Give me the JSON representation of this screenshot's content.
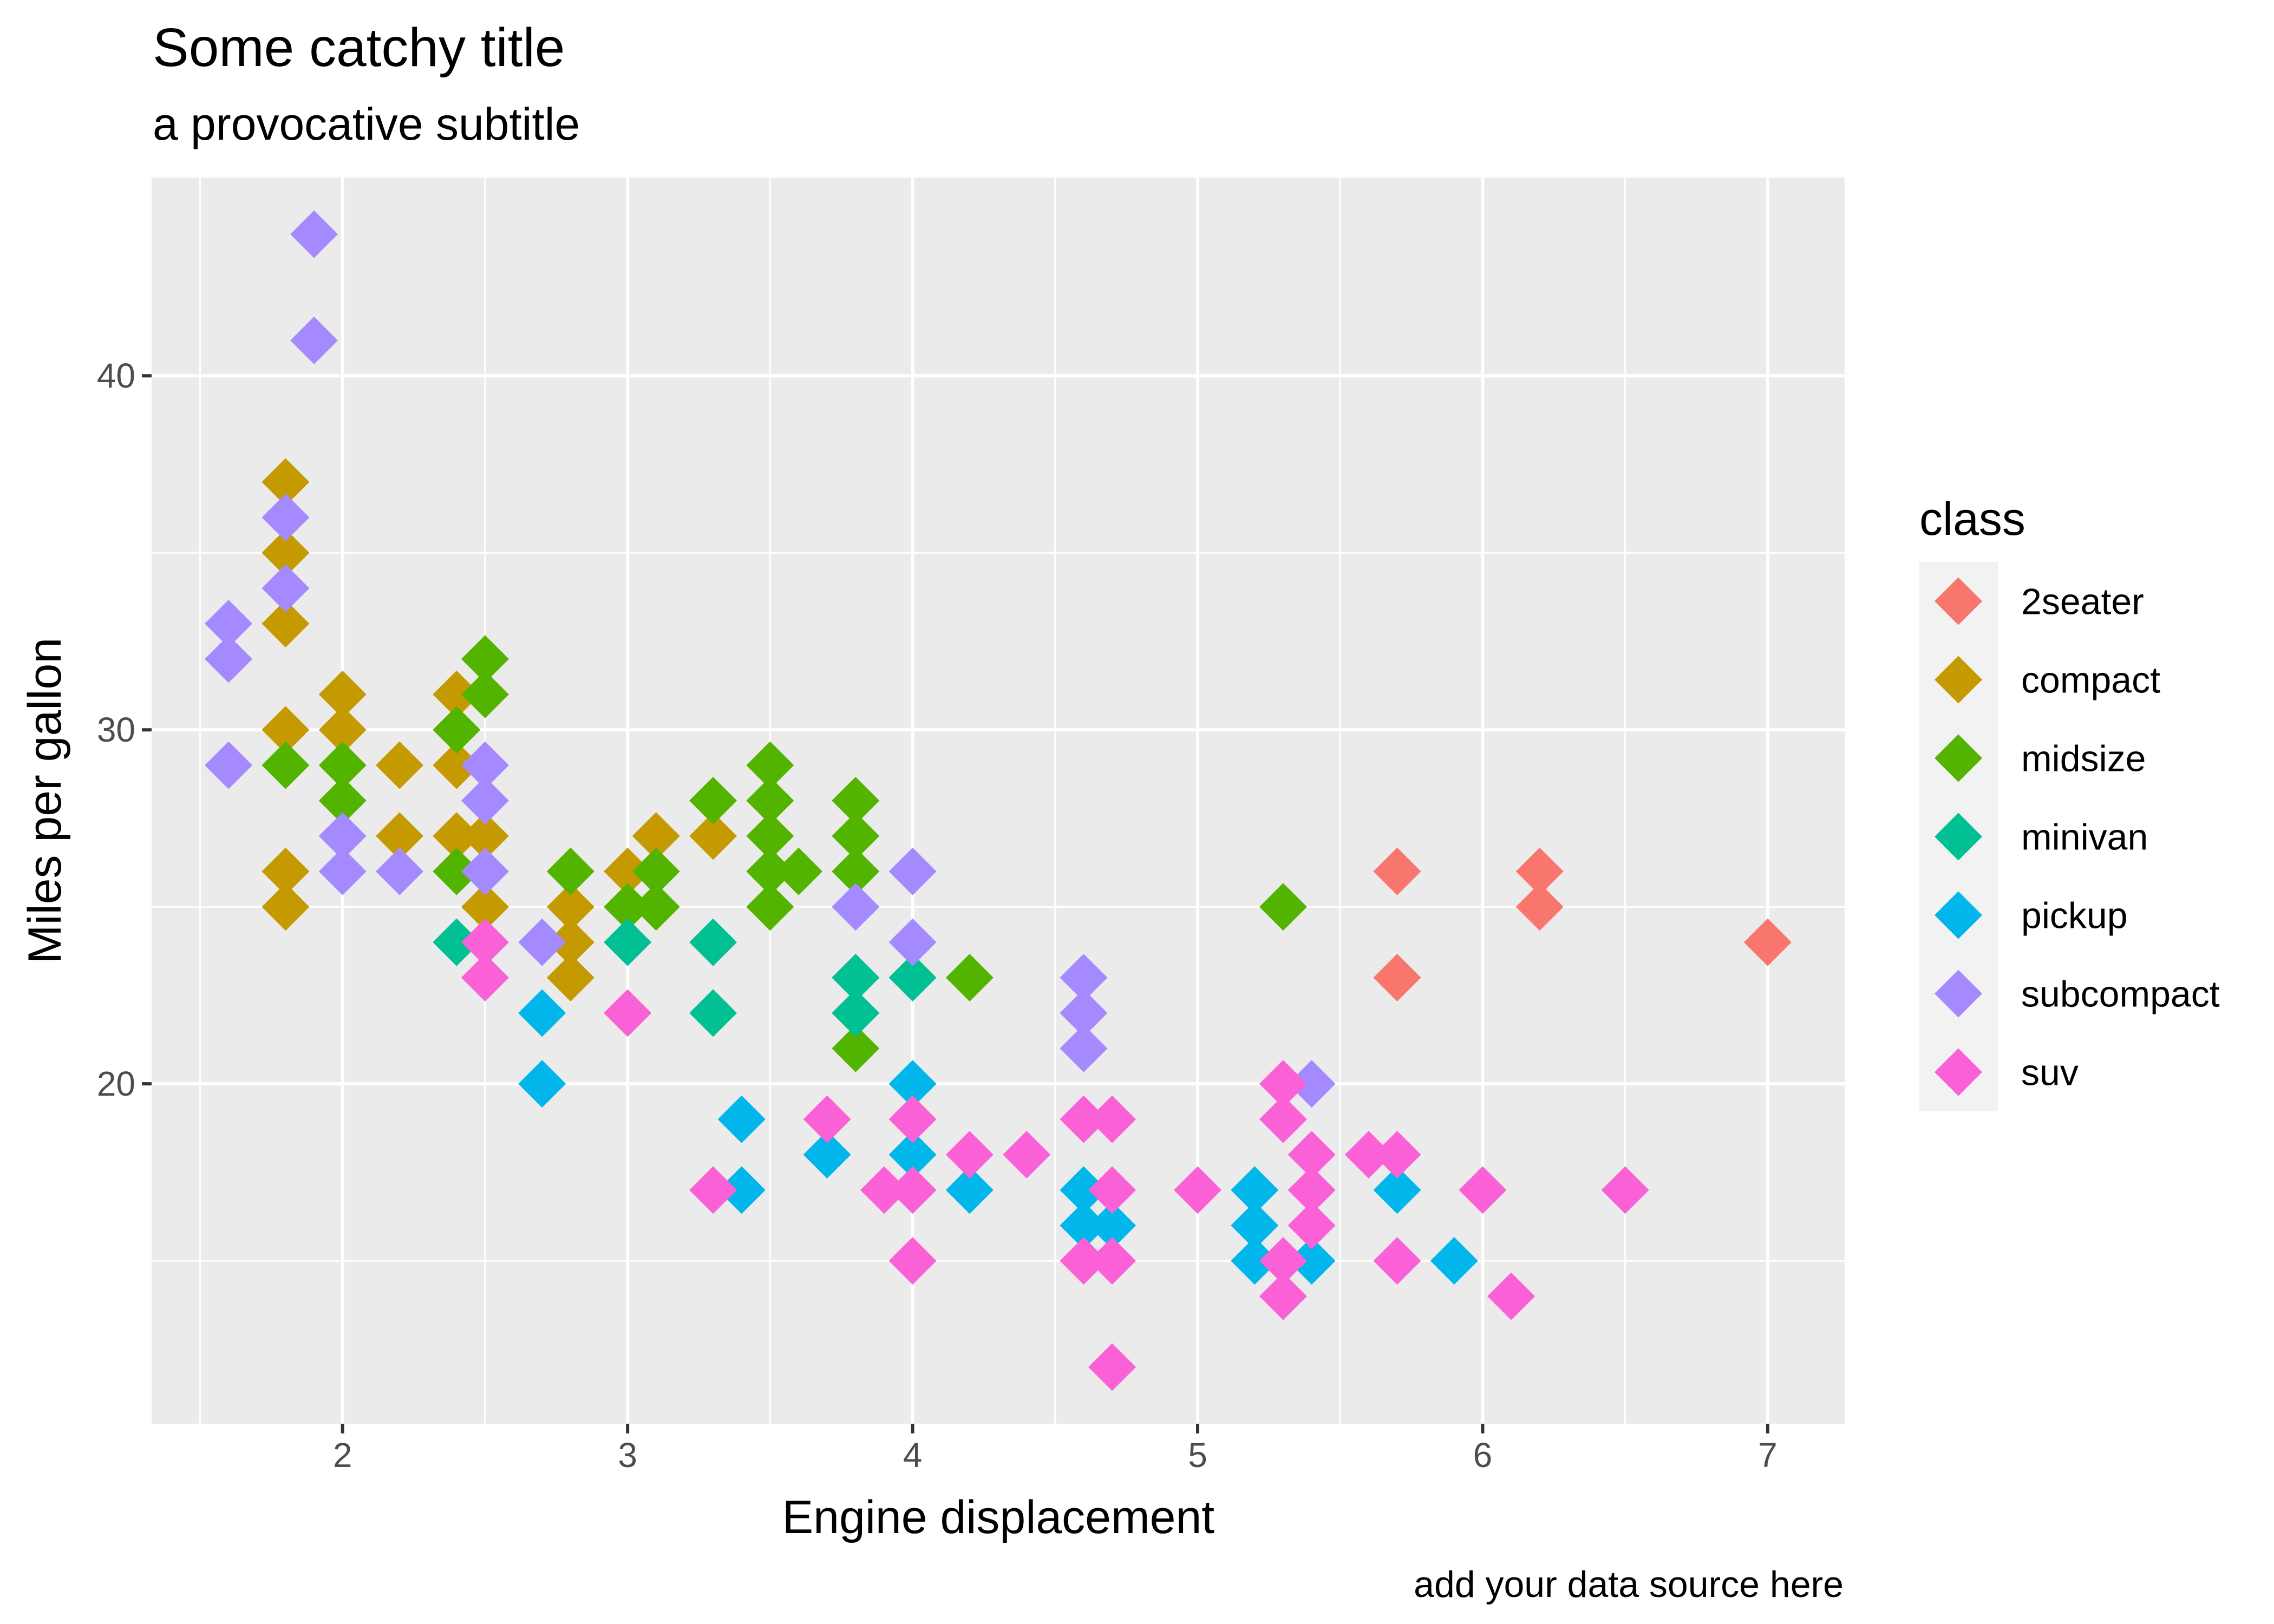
{
  "chart_data": {
    "type": "scatter",
    "title": "Some catchy title",
    "subtitle": "a provocative subtitle",
    "xlabel": "Engine displacement",
    "ylabel": "Miles per gallon",
    "caption": "add your data source here",
    "xlim": [
      1.33,
      7.27
    ],
    "ylim": [
      10.4,
      45.6
    ],
    "xticks": [
      2,
      3,
      4,
      5,
      6,
      7
    ],
    "yticks": [
      20,
      30,
      40
    ],
    "grid": true,
    "legend": {
      "title": "class",
      "placement": "right"
    },
    "colors": {
      "panel": "#EBEBEB",
      "grid": "#FFFFFF",
      "tick_text": "#4D4D4D",
      "legend_key_bg": "#F2F2F2"
    },
    "series": [
      {
        "name": "2seater",
        "color": "#F8766D",
        "points": [
          [
            5.7,
            26
          ],
          [
            5.7,
            23
          ],
          [
            6.2,
            26
          ],
          [
            6.2,
            25
          ],
          [
            7.0,
            24
          ]
        ]
      },
      {
        "name": "compact",
        "color": "#C49A00",
        "points": [
          [
            1.8,
            37
          ],
          [
            1.8,
            35
          ],
          [
            1.8,
            33
          ],
          [
            1.8,
            30
          ],
          [
            1.8,
            26
          ],
          [
            1.8,
            25
          ],
          [
            2.0,
            31
          ],
          [
            2.0,
            30
          ],
          [
            2.2,
            29
          ],
          [
            2.2,
            27
          ],
          [
            2.4,
            31
          ],
          [
            2.4,
            29
          ],
          [
            2.4,
            27
          ],
          [
            2.5,
            27
          ],
          [
            2.5,
            25
          ],
          [
            2.8,
            25
          ],
          [
            2.8,
            24
          ],
          [
            2.8,
            23
          ],
          [
            3.0,
            26
          ],
          [
            3.1,
            27
          ],
          [
            3.3,
            27
          ]
        ]
      },
      {
        "name": "midsize",
        "color": "#53B400",
        "points": [
          [
            1.8,
            29
          ],
          [
            2.0,
            29
          ],
          [
            2.0,
            28
          ],
          [
            2.4,
            30
          ],
          [
            2.4,
            26
          ],
          [
            2.5,
            32
          ],
          [
            2.5,
            31
          ],
          [
            2.8,
            26
          ],
          [
            3.0,
            25
          ],
          [
            3.1,
            26
          ],
          [
            3.1,
            25
          ],
          [
            3.3,
            28
          ],
          [
            3.5,
            29
          ],
          [
            3.5,
            28
          ],
          [
            3.5,
            27
          ],
          [
            3.5,
            26
          ],
          [
            3.5,
            25
          ],
          [
            3.6,
            26
          ],
          [
            3.8,
            28
          ],
          [
            3.8,
            27
          ],
          [
            3.8,
            26
          ],
          [
            3.8,
            23
          ],
          [
            3.8,
            22
          ],
          [
            3.8,
            21
          ],
          [
            4.0,
            23
          ],
          [
            4.2,
            23
          ],
          [
            5.3,
            25
          ]
        ]
      },
      {
        "name": "minivan",
        "color": "#00C094",
        "points": [
          [
            2.4,
            24
          ],
          [
            3.0,
            24
          ],
          [
            3.3,
            24
          ],
          [
            3.3,
            22
          ],
          [
            3.8,
            23
          ],
          [
            3.8,
            22
          ],
          [
            4.0,
            23
          ]
        ]
      },
      {
        "name": "pickup",
        "color": "#00B6EB",
        "points": [
          [
            2.7,
            22
          ],
          [
            2.7,
            20
          ],
          [
            3.4,
            19
          ],
          [
            3.4,
            17
          ],
          [
            3.7,
            18
          ],
          [
            4.0,
            20
          ],
          [
            4.0,
            18
          ],
          [
            4.2,
            17
          ],
          [
            4.6,
            17
          ],
          [
            4.6,
            16
          ],
          [
            4.7,
            16
          ],
          [
            5.2,
            17
          ],
          [
            5.2,
            16
          ],
          [
            5.2,
            15
          ],
          [
            5.4,
            15
          ],
          [
            5.7,
            17
          ],
          [
            5.9,
            15
          ]
        ]
      },
      {
        "name": "subcompact",
        "color": "#A58AFF",
        "points": [
          [
            1.6,
            33
          ],
          [
            1.6,
            32
          ],
          [
            1.6,
            29
          ],
          [
            1.8,
            36
          ],
          [
            1.8,
            34
          ],
          [
            1.9,
            44
          ],
          [
            1.9,
            41
          ],
          [
            2.0,
            27
          ],
          [
            2.0,
            26
          ],
          [
            2.2,
            26
          ],
          [
            2.5,
            29
          ],
          [
            2.5,
            28
          ],
          [
            2.5,
            26
          ],
          [
            2.7,
            24
          ],
          [
            3.8,
            25
          ],
          [
            4.0,
            26
          ],
          [
            4.0,
            24
          ],
          [
            4.6,
            23
          ],
          [
            4.6,
            22
          ],
          [
            4.6,
            21
          ],
          [
            5.4,
            20
          ]
        ]
      },
      {
        "name": "suv",
        "color": "#FB61D7",
        "points": [
          [
            2.5,
            24
          ],
          [
            2.5,
            23
          ],
          [
            3.0,
            22
          ],
          [
            3.3,
            17
          ],
          [
            3.7,
            19
          ],
          [
            3.9,
            17
          ],
          [
            4.0,
            19
          ],
          [
            4.0,
            17
          ],
          [
            4.0,
            15
          ],
          [
            4.2,
            18
          ],
          [
            4.4,
            18
          ],
          [
            4.6,
            19
          ],
          [
            4.6,
            15
          ],
          [
            4.7,
            19
          ],
          [
            4.7,
            17
          ],
          [
            4.7,
            15
          ],
          [
            4.7,
            12
          ],
          [
            5.0,
            17
          ],
          [
            5.3,
            20
          ],
          [
            5.3,
            19
          ],
          [
            5.3,
            15
          ],
          [
            5.3,
            14
          ],
          [
            5.4,
            18
          ],
          [
            5.4,
            17
          ],
          [
            5.4,
            16
          ],
          [
            5.6,
            18
          ],
          [
            5.7,
            18
          ],
          [
            5.7,
            15
          ],
          [
            6.0,
            17
          ],
          [
            6.1,
            14
          ],
          [
            6.5,
            17
          ]
        ]
      }
    ]
  }
}
